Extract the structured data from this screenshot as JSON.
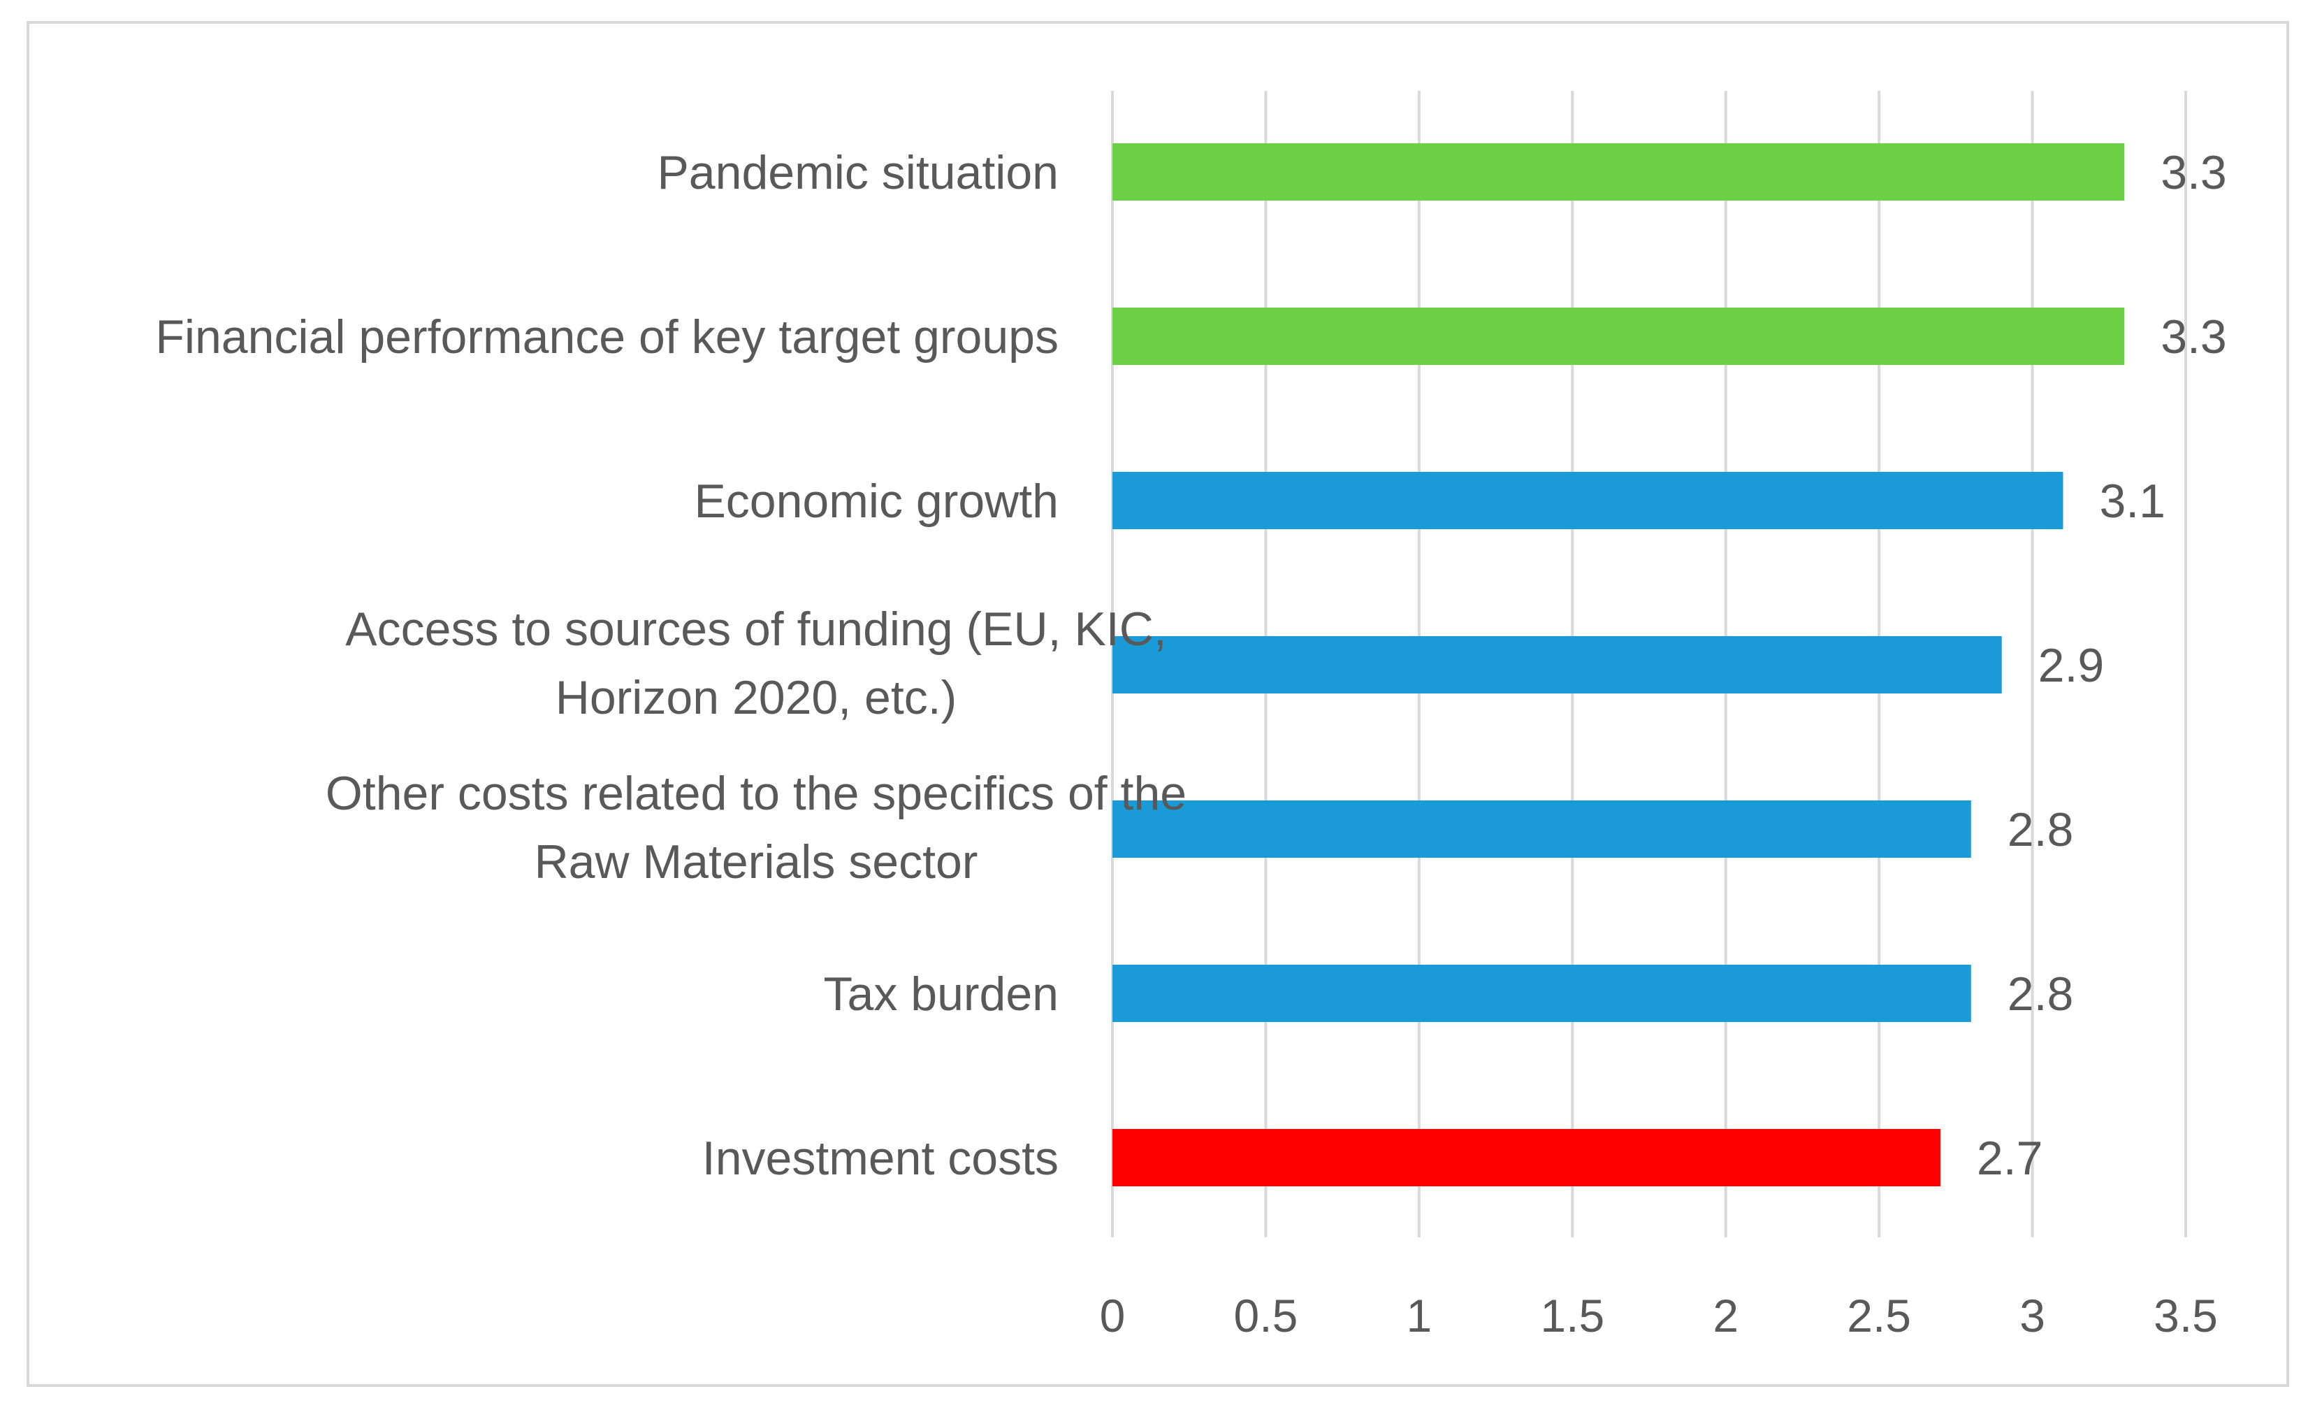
{
  "chart_data": {
    "type": "bar",
    "orientation": "horizontal",
    "title": "",
    "xlabel": "",
    "ylabel": "",
    "xlim": [
      0,
      3.5
    ],
    "grid": true,
    "legend": "none",
    "x_ticks": [
      "0",
      "0.5",
      "1",
      "1.5",
      "2",
      "2.5",
      "3",
      "3.5"
    ],
    "categories": [
      [
        "Pandemic situation"
      ],
      [
        "Financial performance of key target groups"
      ],
      [
        "Economic growth"
      ],
      [
        "Access to sources of funding (EU, KIC,",
        "Horizon 2020, etc.)"
      ],
      [
        "Other costs related to the specifics of the",
        "Raw Materials sector"
      ],
      [
        "Tax burden"
      ],
      [
        "Investment costs"
      ]
    ],
    "values": [
      3.3,
      3.3,
      3.1,
      2.9,
      2.8,
      2.8,
      2.7
    ],
    "value_labels": [
      "3.3",
      "3.3",
      "3.1",
      "2.9",
      "2.8",
      "2.8",
      "2.7"
    ],
    "bar_colors": [
      "#6bd043",
      "#6bd043",
      "#1a9ad6",
      "#1a9ad6",
      "#1a9ad6",
      "#1a9ad6",
      "#ff0000"
    ]
  }
}
